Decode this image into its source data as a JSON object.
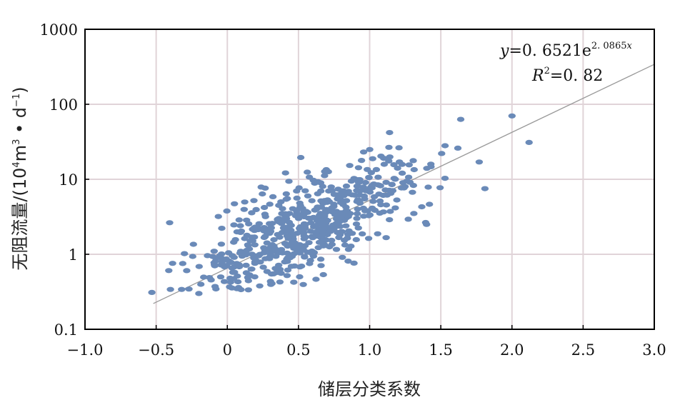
{
  "chart_data": {
    "type": "scatter",
    "title": "",
    "xlabel": "储层分类系数",
    "ylabel": "无阻流量/(10⁴m³ • d⁻¹)",
    "ylabel_parts": {
      "main": "无阻流量/(10",
      "sup1": "4",
      "mid": "m",
      "sup2": "3",
      "dot": " • d",
      "sup3": "−1",
      "end": ")"
    },
    "xlim": [
      -1.0,
      3.0
    ],
    "ylim": [
      0.1,
      1000
    ],
    "yscale": "log",
    "x_ticks": [
      -1.0,
      -0.5,
      0,
      0.5,
      1.0,
      1.5,
      2.0,
      2.5,
      3.0
    ],
    "x_tick_labels": [
      "−1.0",
      "−0.5",
      "0",
      "0.5",
      "1.0",
      "1.5",
      "2.0",
      "2.5",
      "3.0"
    ],
    "y_ticks": [
      0.1,
      1,
      10,
      100,
      1000
    ],
    "y_tick_labels": [
      "0.1",
      "1",
      "10",
      "100",
      "1000"
    ],
    "grid": true,
    "point_color": "#6a8ab8",
    "trend_color": "#999999",
    "grid_color": "#e0d4d8",
    "trendline": {
      "type": "exponential",
      "a": 0.6521,
      "b": 2.0865,
      "x_range": [
        -0.52,
        3.0
      ]
    },
    "annotation": {
      "eq_y": "y",
      "eq_eq": "=0. 6521e",
      "eq_exp": "2. 0865",
      "eq_x": "x",
      "r_label": "R",
      "r_sup": "2",
      "r_val": "=0. 82"
    },
    "notable_points": [
      {
        "x": -0.53,
        "y": 0.31
      },
      {
        "x": -0.4,
        "y": 0.34
      },
      {
        "x": -0.2,
        "y": 0.3
      },
      {
        "x": 1.14,
        "y": 42
      },
      {
        "x": 1.64,
        "y": 63
      },
      {
        "x": 2.0,
        "y": 70
      },
      {
        "x": 2.12,
        "y": 31
      },
      {
        "x": 1.81,
        "y": 7.5
      },
      {
        "x": 1.77,
        "y": 17
      },
      {
        "x": 1.53,
        "y": 28
      },
      {
        "x": 1.62,
        "y": 26
      },
      {
        "x": 1.4,
        "y": 2.5
      }
    ],
    "cluster": {
      "count": 580,
      "x_center": 0.55,
      "x_spread": 0.42,
      "log10_y_scatter": 0.33,
      "seed": 20240617
    }
  }
}
